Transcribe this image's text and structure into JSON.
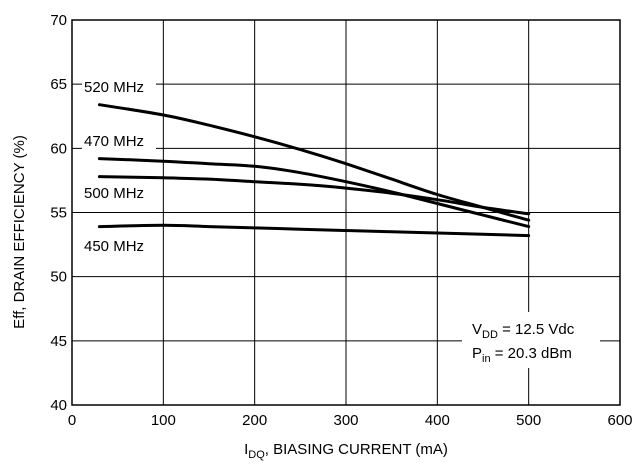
{
  "chart_data": {
    "type": "line",
    "title": "",
    "xlabel": {
      "main": "I",
      "sub": "DQ",
      "rest": ", BIASING CURRENT (mA)"
    },
    "ylabel": "Eff, DRAIN EFFICIENCY (%)",
    "xlim": [
      0,
      600
    ],
    "ylim": [
      40,
      70
    ],
    "xticks": [
      0,
      100,
      200,
      300,
      400,
      500,
      600
    ],
    "yticks": [
      40,
      45,
      50,
      55,
      60,
      65,
      70
    ],
    "grid": true,
    "series": [
      {
        "name": "520 MHz",
        "x": [
          30,
          100,
          150,
          200,
          250,
          300,
          350,
          400,
          450,
          500
        ],
        "y": [
          63.4,
          62.6,
          61.8,
          60.9,
          59.9,
          58.8,
          57.6,
          56.4,
          55.4,
          54.4
        ]
      },
      {
        "name": "470 MHz",
        "x": [
          30,
          100,
          150,
          200,
          250,
          300,
          350,
          400,
          450,
          500
        ],
        "y": [
          59.2,
          59.0,
          58.8,
          58.6,
          58.1,
          57.4,
          56.6,
          55.7,
          54.8,
          53.9
        ]
      },
      {
        "name": "500 MHz",
        "x": [
          30,
          100,
          150,
          200,
          250,
          300,
          350,
          400,
          450,
          500
        ],
        "y": [
          57.8,
          57.7,
          57.6,
          57.4,
          57.2,
          56.9,
          56.5,
          56.0,
          55.4,
          54.9
        ]
      },
      {
        "name": "450 MHz",
        "x": [
          30,
          100,
          150,
          200,
          250,
          300,
          350,
          400,
          450,
          500
        ],
        "y": [
          53.9,
          54.0,
          53.9,
          53.8,
          53.7,
          53.6,
          53.5,
          53.4,
          53.3,
          53.2
        ]
      }
    ],
    "annotations": [
      {
        "main": "V",
        "sub": "DD",
        "rest": " = 12.5 Vdc"
      },
      {
        "main": "P",
        "sub": "in",
        "rest": " = 20.3 dBm"
      }
    ]
  }
}
